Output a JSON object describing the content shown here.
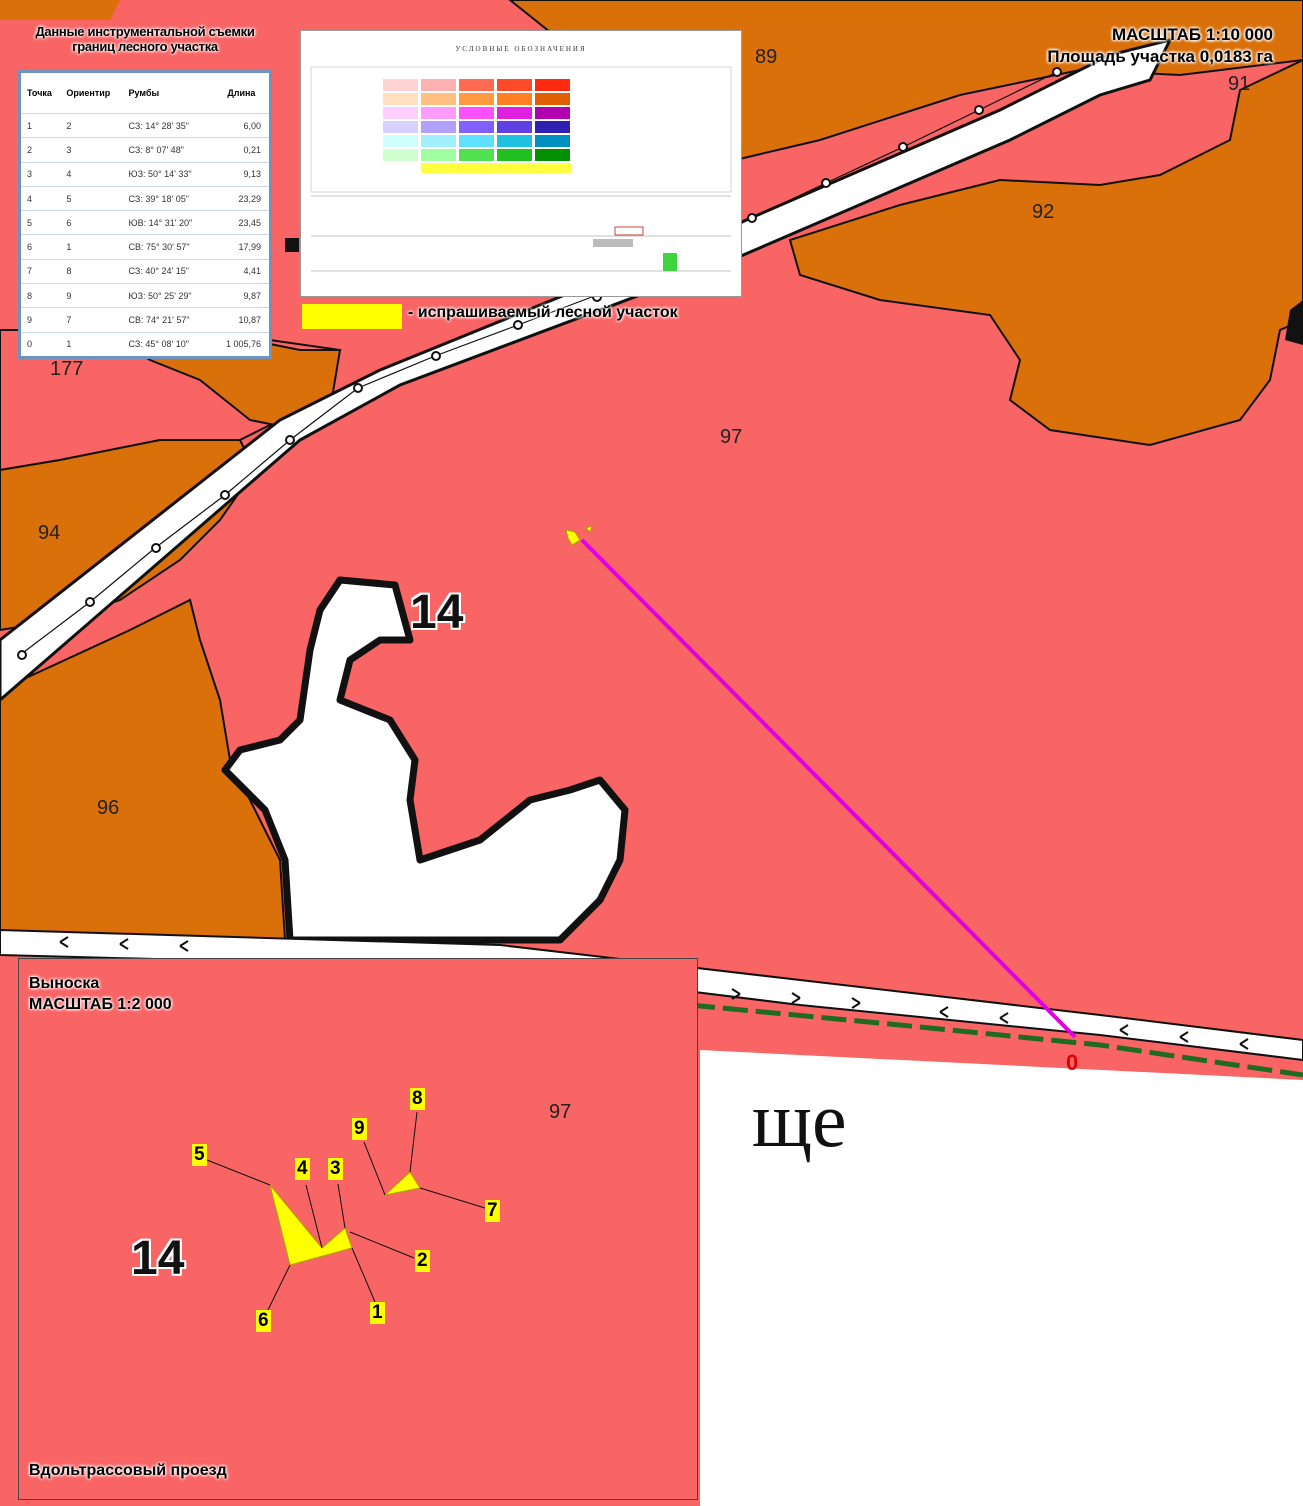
{
  "map": {
    "scale_main": "МАСШТАБ 1:10 000",
    "area": "Площадь участка 0,0183 га",
    "block_number": "14",
    "parcels": [
      "89",
      "91",
      "92",
      "97",
      "177",
      "94",
      "96"
    ],
    "settlement_fragment": "ще",
    "point_zero": "0",
    "colors": {
      "pink_forest": "#f96465",
      "orange_forest": "#d97009",
      "road": "#ffffff",
      "route_line": "#e000e0",
      "requested": "#ffff00"
    }
  },
  "survey": {
    "title": "Данные инструментальной съемки границ лесного участка",
    "columns": [
      "Точка",
      "Ориентир",
      "Румбы",
      "Длина"
    ],
    "rows": [
      [
        "1",
        "2",
        "СЗ: 14° 28' 35\"",
        "6,00"
      ],
      [
        "2",
        "3",
        "СЗ: 8° 07' 48\"",
        "0,21"
      ],
      [
        "3",
        "4",
        "ЮЗ: 50° 14' 33\"",
        "9,13"
      ],
      [
        "4",
        "5",
        "СЗ: 39° 18' 05\"",
        "23,29"
      ],
      [
        "5",
        "6",
        "ЮВ: 14° 31' 20\"",
        "23,45"
      ],
      [
        "6",
        "1",
        "СВ: 75° 30' 57\"",
        "17,99"
      ],
      [
        "7",
        "8",
        "СЗ: 40° 24' 15\"",
        "4,41"
      ],
      [
        "8",
        "9",
        "ЮЗ: 50° 25' 29\"",
        "9,87"
      ],
      [
        "9",
        "7",
        "СВ: 74° 21' 57\"",
        "10,87"
      ],
      [
        "0",
        "1",
        "СЗ: 45° 08' 10\"",
        "1 005,76"
      ]
    ]
  },
  "legend": {
    "title": "УСЛОВНЫЕ ОБОЗНАЧЕНИЯ",
    "requested_label": "- испрашиваемый лесной участок"
  },
  "inset": {
    "title": "Выноска",
    "scale": "МАСШТАБ 1:2 000",
    "parcel": "97",
    "block_number": "14",
    "road_label": "Вдольтрассовый проезд",
    "points": [
      "1",
      "2",
      "3",
      "4",
      "5",
      "6",
      "7",
      "8",
      "9"
    ]
  }
}
